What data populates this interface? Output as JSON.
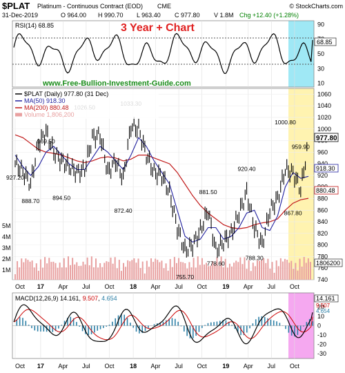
{
  "header": {
    "symbol": "$PLAT",
    "name": "Platinum - Continuous Contract (EOD)",
    "exchange": "CME",
    "brand": "© StockCharts.com",
    "date": "31-Dec-2019",
    "open": "O 964.00",
    "high": "H 990.70",
    "low": "L 963.40",
    "close": "C 977.80",
    "volume": "V 1.8M",
    "change": "Chg +12.40 (+1.28%)",
    "change_color": "#008000"
  },
  "overlay_title": "3 Year + Chart",
  "watermark": "www.Free-Bullion-Investment-Guide.com",
  "colors": {
    "price": "#000000",
    "ma50": "#1f1f9e",
    "ma200": "#c01818",
    "volume": "#e8a0a0",
    "highlight_rsi": "#9fe8f5",
    "highlight_price": "#fff3b0",
    "highlight_macd": "#f5a8f0",
    "macd_line": "#000000",
    "signal_line": "#cc0000",
    "histogram": "#2c7fa6",
    "title": "#e02020",
    "watermark": "#1a8c1a"
  },
  "rsi": {
    "label": "RSI(14) 68.85",
    "axis_ticks": [
      "90",
      "70",
      "50",
      "30",
      "10"
    ],
    "last_value": "68.85"
  },
  "price": {
    "legend": [
      {
        "text": "$PLAT (Daily) 977.80 (31 Dec)",
        "key": "price"
      },
      {
        "text": "MA(50) 918.30",
        "key": "ma50"
      },
      {
        "text": "MA(200) 880.48",
        "key": "ma200"
      },
      {
        "text": "Volume 1,806,200",
        "key": "volume"
      }
    ],
    "axis_ticks": [
      "1060",
      "1040",
      "1020",
      "1000",
      "980",
      "960",
      "940",
      "920",
      "900",
      "880",
      "860",
      "840",
      "820",
      "800",
      "780",
      "760",
      "740"
    ],
    "volume_ticks": [
      "5M",
      "4M",
      "3M",
      "2M",
      "1M"
    ],
    "last_price": "977.80",
    "last_ma50": "918.30",
    "last_ma200": "880.48",
    "last_volume": "1806200",
    "annotations": [
      "927.20",
      "888.70",
      "969.50",
      "894.50",
      "1026.50",
      "872.40",
      "1033.30",
      "755.70",
      "881.50",
      "778.60",
      "920.40",
      "788.30",
      "1000.80",
      "959.90",
      "867.80"
    ]
  },
  "macd": {
    "label": "MACD(12,26,9) 14.161, 9.507, 4.654",
    "label_parts": [
      "MACD(12,26,9) 14.161, ",
      "9.507",
      ", ",
      "4.654"
    ],
    "axis_ticks": [
      "30",
      "20",
      "10",
      "0",
      "-10",
      "-20",
      "-30"
    ],
    "last_values": [
      "14.161",
      "9.507",
      "4.654"
    ]
  },
  "x_axis": {
    "labels": [
      "Oct",
      "17",
      "Apr",
      "Jul",
      "Oct",
      "18",
      "Apr",
      "Jul",
      "Oct",
      "19",
      "Apr",
      "Jul",
      "Oct"
    ]
  },
  "chart_data": {
    "type": "line",
    "title": "3 Year + Chart",
    "x": [
      "Oct 2016",
      "Nov 2016",
      "Dec 2016",
      "Jan 2017",
      "Feb 2017",
      "Mar 2017",
      "Apr 2017",
      "May 2017",
      "Jun 2017",
      "Jul 2017",
      "Aug 2017",
      "Sep 2017",
      "Oct 2017",
      "Nov 2017",
      "Dec 2017",
      "Jan 2018",
      "Feb 2018",
      "Mar 2018",
      "Apr 2018",
      "May 2018",
      "Jun 2018",
      "Jul 2018",
      "Aug 2018",
      "Sep 2018",
      "Oct 2018",
      "Nov 2018",
      "Dec 2018",
      "Jan 2019",
      "Feb 2019",
      "Mar 2019",
      "Apr 2019",
      "May 2019",
      "Jun 2019",
      "Jul 2019",
      "Aug 2019",
      "Sep 2019",
      "Oct 2019",
      "Nov 2019",
      "Dec 2019"
    ],
    "series": [
      {
        "name": "$PLAT (Daily)",
        "values": [
          940,
          927,
          905,
          975,
          995,
          960,
          945,
          935,
          925,
          930,
          985,
          990,
          925,
          945,
          915,
          1005,
          1000,
          955,
          925,
          920,
          890,
          830,
          790,
          800,
          825,
          860,
          790,
          805,
          820,
          855,
          890,
          830,
          800,
          860,
          880,
          930,
          925,
          895,
          978
        ]
      },
      {
        "name": "MA(50)",
        "values": [
          955,
          935,
          920,
          935,
          960,
          970,
          955,
          940,
          930,
          930,
          950,
          970,
          960,
          945,
          930,
          955,
          985,
          970,
          945,
          925,
          905,
          860,
          815,
          805,
          810,
          830,
          830,
          810,
          815,
          830,
          855,
          860,
          830,
          825,
          850,
          900,
          925,
          915,
          918.3
        ]
      },
      {
        "name": "MA(200)",
        "values": [
          990,
          985,
          975,
          965,
          960,
          958,
          955,
          950,
          945,
          942,
          945,
          950,
          952,
          950,
          945,
          948,
          955,
          955,
          950,
          945,
          940,
          925,
          905,
          885,
          868,
          855,
          845,
          835,
          830,
          828,
          830,
          835,
          838,
          840,
          845,
          860,
          872,
          878,
          880.48
        ]
      }
    ],
    "rsi": {
      "name": "RSI(14)",
      "last": 68.85,
      "ylim": [
        10,
        90
      ]
    },
    "macd": {
      "params": "12,26,9",
      "macd": 14.161,
      "signal": 9.507,
      "histogram": 4.654,
      "ylim": [
        -35,
        35
      ]
    },
    "volume": {
      "name": "Volume",
      "last": 1806200
    },
    "ylim": [
      740,
      1070
    ],
    "annotations": [
      {
        "date": "Oct 2016",
        "value": 927.2
      },
      {
        "date": "Dec 2016",
        "value": 888.7
      },
      {
        "date": "Feb 2017",
        "value": 969.5
      },
      {
        "date": "Apr 2017",
        "value": 894.5
      },
      {
        "date": "Jul 2017",
        "value": 1026.5
      },
      {
        "date": "Dec 2017",
        "value": 872.4
      },
      {
        "date": "Jan 2018",
        "value": 1033.3
      },
      {
        "date": "Aug 2018",
        "value": 755.7
      },
      {
        "date": "Nov 2018",
        "value": 881.5
      },
      {
        "date": "Dec 2018",
        "value": 778.6
      },
      {
        "date": "Apr 2019",
        "value": 920.4
      },
      {
        "date": "May 2019",
        "value": 788.3
      },
      {
        "date": "Sep 2019",
        "value": 1000.8
      },
      {
        "date": "Nov 2019",
        "value": 959.9
      },
      {
        "date": "Oct 2019",
        "value": 867.8
      }
    ]
  }
}
